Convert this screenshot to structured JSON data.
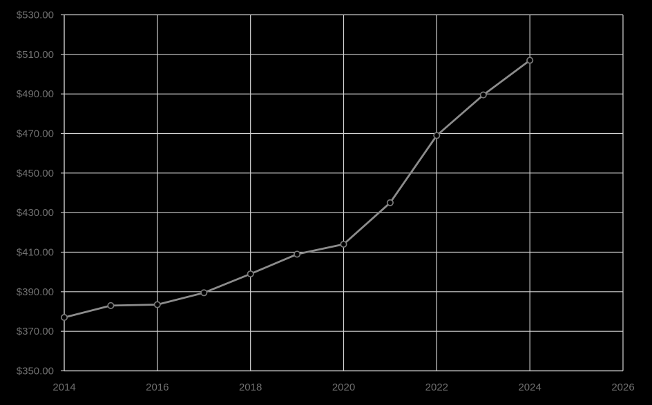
{
  "chart_data": {
    "type": "line",
    "title": "",
    "xlabel": "",
    "ylabel": "",
    "x": [
      2014,
      2015,
      2016,
      2017,
      2018,
      2019,
      2020,
      2021,
      2022,
      2023,
      2024
    ],
    "values": [
      377,
      383,
      383.5,
      389.5,
      399,
      409,
      414,
      435,
      469,
      489.5,
      507
    ],
    "series_name": "",
    "xlim": [
      2014,
      2026
    ],
    "ylim": [
      350,
      530
    ],
    "x_tick_step": 2,
    "y_tick_step": 20,
    "x_tick_labels": [
      "2014",
      "2016",
      "2018",
      "2020",
      "2022",
      "2024",
      "2026"
    ],
    "y_tick_labels": [
      "$350.00",
      "$370.00",
      "$390.00",
      "$410.00",
      "$430.00",
      "$450.00",
      "$470.00",
      "$490.00",
      "$510.00",
      "$530.00"
    ],
    "grid": "on",
    "legend": "none",
    "marker": "circle-open",
    "colors": {
      "background": "#000000",
      "gridline": "#d4d4d4",
      "axis_line": "#c6c6c6",
      "series_line": "#8c8c8c",
      "marker_stroke": "#7a7a7a",
      "marker_fill": "#000000",
      "tick_label": "#707070"
    }
  }
}
